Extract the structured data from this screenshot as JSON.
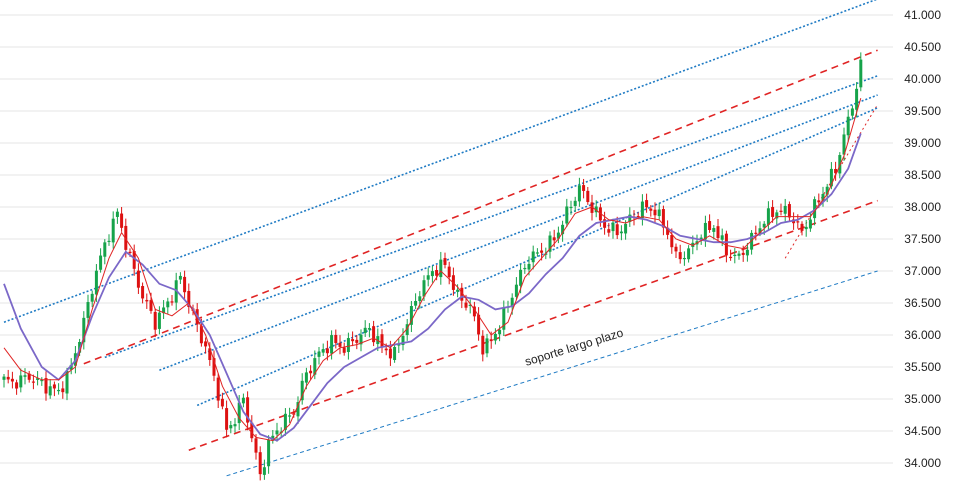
{
  "colors": {
    "up": "#16a34a",
    "down": "#dd1111",
    "grid": "#e4e4e4",
    "ma_fast": "#e02424",
    "ma_slow": "#7b68c8",
    "channel": "#e02424",
    "trend": "#1f7bc4"
  },
  "chart_data": {
    "type": "candlestick",
    "title": "",
    "xlabel": "",
    "ylabel": "",
    "ylim": [
      33.8,
      41.2
    ],
    "grid": true,
    "y_ticks": [
      {
        "value": 34.0,
        "label": "34.000"
      },
      {
        "value": 34.5,
        "label": "34.500"
      },
      {
        "value": 35.0,
        "label": "35.000"
      },
      {
        "value": 35.5,
        "label": "35.500"
      },
      {
        "value": 36.0,
        "label": "36.000"
      },
      {
        "value": 36.5,
        "label": "36.500"
      },
      {
        "value": 37.0,
        "label": "37.000"
      },
      {
        "value": 37.5,
        "label": "37.500"
      },
      {
        "value": 38.0,
        "label": "38.000"
      },
      {
        "value": 38.5,
        "label": "38.500"
      },
      {
        "value": 39.0,
        "label": "39.000"
      },
      {
        "value": 39.5,
        "label": "39.500"
      },
      {
        "value": 40.0,
        "label": "40.000"
      },
      {
        "value": 40.5,
        "label": "40.500"
      },
      {
        "value": 41.0,
        "label": "41.000"
      }
    ],
    "close_path": [
      [
        0,
        35.3
      ],
      [
        2,
        35.25
      ],
      [
        6,
        35.35
      ],
      [
        10,
        35.2
      ],
      [
        13,
        35.1
      ],
      [
        16,
        35.5
      ],
      [
        19,
        36.2
      ],
      [
        22,
        37.0
      ],
      [
        25,
        37.6
      ],
      [
        27,
        37.9
      ],
      [
        30,
        37.2
      ],
      [
        33,
        36.6
      ],
      [
        36,
        36.2
      ],
      [
        39,
        36.5
      ],
      [
        42,
        36.9
      ],
      [
        45,
        36.3
      ],
      [
        48,
        35.8
      ],
      [
        51,
        35.1
      ],
      [
        53,
        34.5
      ],
      [
        55,
        34.7
      ],
      [
        57,
        35.0
      ],
      [
        59,
        34.4
      ],
      [
        61,
        33.8
      ],
      [
        63,
        34.3
      ],
      [
        66,
        34.6
      ],
      [
        69,
        34.8
      ],
      [
        72,
        35.4
      ],
      [
        75,
        35.7
      ],
      [
        78,
        35.9
      ],
      [
        81,
        35.8
      ],
      [
        84,
        35.95
      ],
      [
        87,
        36.1
      ],
      [
        90,
        35.8
      ],
      [
        93,
        35.7
      ],
      [
        96,
        36.2
      ],
      [
        99,
        36.7
      ],
      [
        102,
        37.0
      ],
      [
        105,
        37.1
      ],
      [
        108,
        36.6
      ],
      [
        111,
        36.45
      ],
      [
        114,
        35.8
      ],
      [
        116,
        35.9
      ],
      [
        119,
        36.3
      ],
      [
        122,
        36.8
      ],
      [
        125,
        37.2
      ],
      [
        128,
        37.3
      ],
      [
        131,
        37.5
      ],
      [
        134,
        37.9
      ],
      [
        137,
        38.3
      ],
      [
        140,
        38.0
      ],
      [
        143,
        37.7
      ],
      [
        146,
        37.6
      ],
      [
        149,
        37.8
      ],
      [
        152,
        38.0
      ],
      [
        155,
        37.95
      ],
      [
        158,
        37.6
      ],
      [
        160,
        37.2
      ],
      [
        163,
        37.3
      ],
      [
        166,
        37.6
      ],
      [
        169,
        37.7
      ],
      [
        172,
        37.3
      ],
      [
        175,
        37.2
      ],
      [
        178,
        37.5
      ],
      [
        181,
        37.8
      ],
      [
        184,
        37.95
      ],
      [
        187,
        37.9
      ],
      [
        190,
        37.6
      ],
      [
        193,
        38.0
      ],
      [
        196,
        38.35
      ],
      [
        198,
        38.6
      ],
      [
        200,
        39.1
      ],
      [
        202,
        39.6
      ],
      [
        204,
        40.2
      ]
    ],
    "ma_fast": {
      "period": 9,
      "points": [
        [
          0,
          35.8
        ],
        [
          4,
          35.45
        ],
        [
          9,
          35.3
        ],
        [
          13,
          35.3
        ],
        [
          17,
          35.5
        ],
        [
          21,
          36.4
        ],
        [
          25,
          37.2
        ],
        [
          28,
          37.6
        ],
        [
          32,
          37.2
        ],
        [
          36,
          36.4
        ],
        [
          40,
          36.3
        ],
        [
          44,
          36.5
        ],
        [
          48,
          36.0
        ],
        [
          52,
          35.2
        ],
        [
          56,
          34.7
        ],
        [
          60,
          34.4
        ],
        [
          64,
          34.35
        ],
        [
          68,
          34.6
        ],
        [
          72,
          35.2
        ],
        [
          76,
          35.6
        ],
        [
          80,
          35.8
        ],
        [
          84,
          35.85
        ],
        [
          88,
          35.95
        ],
        [
          92,
          35.8
        ],
        [
          96,
          36.1
        ],
        [
          100,
          36.6
        ],
        [
          104,
          37.0
        ],
        [
          108,
          36.75
        ],
        [
          112,
          36.4
        ],
        [
          116,
          36.0
        ],
        [
          120,
          36.2
        ],
        [
          124,
          36.9
        ],
        [
          128,
          37.2
        ],
        [
          132,
          37.5
        ],
        [
          136,
          37.9
        ],
        [
          140,
          38.0
        ],
        [
          144,
          37.8
        ],
        [
          148,
          37.75
        ],
        [
          152,
          37.85
        ],
        [
          156,
          37.8
        ],
        [
          160,
          37.5
        ],
        [
          164,
          37.4
        ],
        [
          168,
          37.55
        ],
        [
          172,
          37.4
        ],
        [
          176,
          37.35
        ],
        [
          180,
          37.6
        ],
        [
          184,
          37.85
        ],
        [
          188,
          37.85
        ],
        [
          192,
          37.85
        ],
        [
          196,
          38.2
        ],
        [
          200,
          38.8
        ],
        [
          204,
          39.7
        ]
      ]
    },
    "ma_slow": {
      "period": 20,
      "points": [
        [
          0,
          36.8
        ],
        [
          4,
          36.1
        ],
        [
          9,
          35.5
        ],
        [
          13,
          35.3
        ],
        [
          17,
          35.6
        ],
        [
          21,
          36.3
        ],
        [
          25,
          36.9
        ],
        [
          29,
          37.3
        ],
        [
          33,
          37.1
        ],
        [
          37,
          36.8
        ],
        [
          41,
          36.7
        ],
        [
          45,
          36.4
        ],
        [
          49,
          36.0
        ],
        [
          53,
          35.4
        ],
        [
          57,
          34.8
        ],
        [
          61,
          34.45
        ],
        [
          65,
          34.35
        ],
        [
          69,
          34.55
        ],
        [
          73,
          34.9
        ],
        [
          77,
          35.25
        ],
        [
          81,
          35.5
        ],
        [
          85,
          35.65
        ],
        [
          89,
          35.8
        ],
        [
          93,
          35.85
        ],
        [
          97,
          35.9
        ],
        [
          101,
          36.1
        ],
        [
          105,
          36.4
        ],
        [
          109,
          36.6
        ],
        [
          113,
          36.55
        ],
        [
          117,
          36.4
        ],
        [
          121,
          36.45
        ],
        [
          125,
          36.65
        ],
        [
          129,
          36.95
        ],
        [
          133,
          37.2
        ],
        [
          137,
          37.55
        ],
        [
          141,
          37.75
        ],
        [
          145,
          37.8
        ],
        [
          149,
          37.85
        ],
        [
          153,
          37.8
        ],
        [
          157,
          37.7
        ],
        [
          161,
          37.55
        ],
        [
          165,
          37.5
        ],
        [
          169,
          37.45
        ],
        [
          173,
          37.45
        ],
        [
          177,
          37.5
        ],
        [
          181,
          37.6
        ],
        [
          185,
          37.75
        ],
        [
          189,
          37.8
        ],
        [
          193,
          37.95
        ],
        [
          197,
          38.2
        ],
        [
          201,
          38.6
        ],
        [
          204,
          39.15
        ]
      ]
    },
    "lines": [
      {
        "id": "channel-upper",
        "style": "dashed",
        "color_key": "channel",
        "from": [
          19,
          35.55
        ],
        "to": [
          208,
          40.45
        ]
      },
      {
        "id": "channel-lower",
        "style": "dashed",
        "color_key": "channel",
        "from": [
          44,
          34.2
        ],
        "to": [
          208,
          38.1
        ]
      },
      {
        "id": "short-trend",
        "style": "dotted-fine",
        "color_key": "channel",
        "from": [
          186,
          37.2
        ],
        "to": [
          208,
          39.6
        ]
      },
      {
        "id": "trend-top",
        "style": "dotted",
        "color_key": "trend",
        "from": [
          0,
          36.2
        ],
        "to": [
          208,
          41.25
        ]
      },
      {
        "id": "trend-2",
        "style": "dotted",
        "color_key": "trend",
        "from": [
          24,
          35.65
        ],
        "to": [
          208,
          40.05
        ]
      },
      {
        "id": "trend-3",
        "style": "dotted",
        "color_key": "trend",
        "from": [
          37,
          35.45
        ],
        "to": [
          208,
          39.75
        ]
      },
      {
        "id": "trend-4",
        "style": "dotted",
        "color_key": "trend",
        "from": [
          46,
          34.9
        ],
        "to": [
          208,
          39.55
        ]
      },
      {
        "id": "soporte-largo-plazo",
        "style": "dashed-fine",
        "color_key": "trend",
        "from": [
          53,
          33.8
        ],
        "to": [
          208,
          37.0
        ]
      }
    ],
    "annotations": [
      {
        "text": "soporte  largo plazo",
        "x": 136,
        "y": 35.75,
        "rotate": -17
      }
    ]
  }
}
